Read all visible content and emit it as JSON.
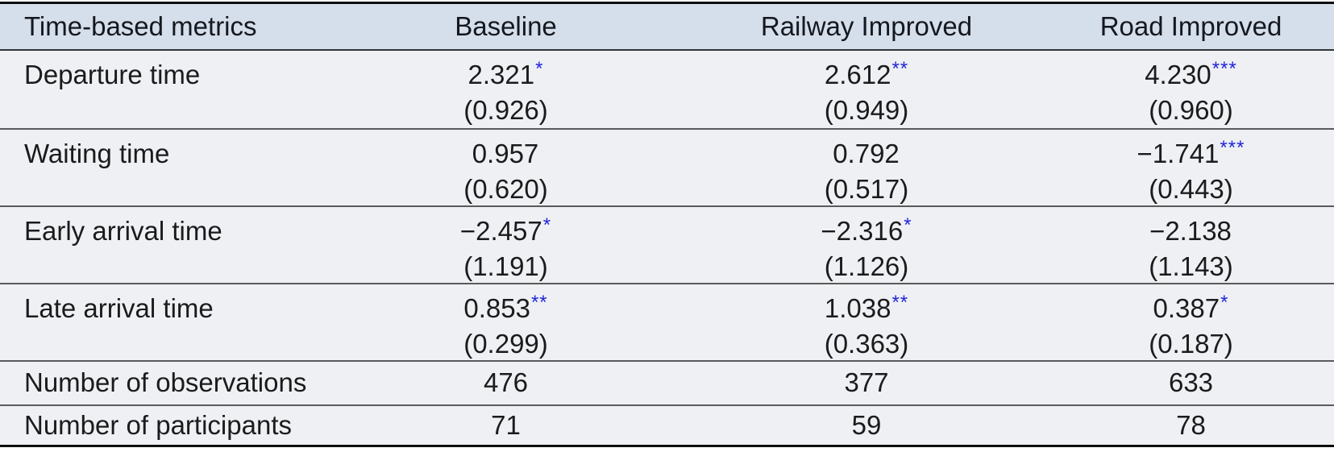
{
  "table": {
    "colors": {
      "header_bg": "#d5deeb",
      "body_bg": "#eef0f4",
      "star_blue": "#2226d8",
      "text": "#1b1b1b",
      "rule_black": "#0d0d0d",
      "rule_gray": "#5a5a5a"
    },
    "columns": [
      "Time-based metrics",
      "Baseline",
      "Railway Improved",
      "Road Improved"
    ],
    "rows": [
      {
        "metric": "Departure time",
        "cells": [
          {
            "value": "2.321",
            "stars": "*",
            "se": "(0.926)"
          },
          {
            "value": "2.612",
            "stars": "**",
            "se": "(0.949)"
          },
          {
            "value": "4.230",
            "stars": "***",
            "se": "(0.960)"
          }
        ]
      },
      {
        "metric": "Waiting time",
        "cells": [
          {
            "value": "0.957",
            "stars": "",
            "se": "(0.620)"
          },
          {
            "value": "0.792",
            "stars": "",
            "se": "(0.517)"
          },
          {
            "value": "−1.741",
            "stars": "***",
            "se": "(0.443)"
          }
        ]
      },
      {
        "metric": "Early arrival time",
        "cells": [
          {
            "value": "−2.457",
            "stars": "*",
            "se": "(1.191)"
          },
          {
            "value": "−2.316",
            "stars": "*",
            "se": "(1.126)"
          },
          {
            "value": "−2.138",
            "stars": "",
            "se": "(1.143)"
          }
        ]
      },
      {
        "metric": "Late arrival time",
        "cells": [
          {
            "value": "0.853",
            "stars": "**",
            "se": "(0.299)"
          },
          {
            "value": "1.038",
            "stars": "**",
            "se": "(0.363)"
          },
          {
            "value": "0.387",
            "stars": "*",
            "se": "(0.187)"
          }
        ]
      }
    ],
    "summary_rows": [
      {
        "metric": "Number of observations",
        "values": [
          "476",
          "377",
          "633"
        ]
      },
      {
        "metric": "Number of participants",
        "values": [
          "71",
          "59",
          "78"
        ]
      }
    ]
  }
}
